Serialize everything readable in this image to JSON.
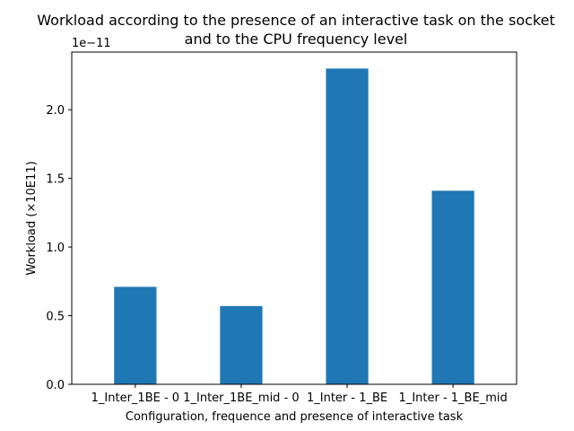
{
  "chart_data": {
    "type": "bar",
    "title_lines": [
      "Workload according to the presence of an interactive task on the socket",
      "and to the CPU frequency level"
    ],
    "xlabel": "Configuration, frequence and presence of interactive task",
    "ylabel": "Workload (×10E11)",
    "y_offset_label": "1e−11",
    "categories": [
      "1_Inter_1BE - 0",
      "1_Inter_1BE_mid - 0",
      "1_Inter - 1_BE",
      "1_Inter - 1_BE_mid"
    ],
    "values": [
      0.71,
      0.57,
      2.3,
      1.41
    ],
    "ylim": [
      0,
      2.42
    ],
    "yticks": [
      0.0,
      0.5,
      1.0,
      1.5,
      2.0
    ],
    "ytick_labels": [
      "0.0",
      "0.5",
      "1.0",
      "1.5",
      "2.0"
    ],
    "bar_color": "#1f77b4",
    "grid": false
  }
}
